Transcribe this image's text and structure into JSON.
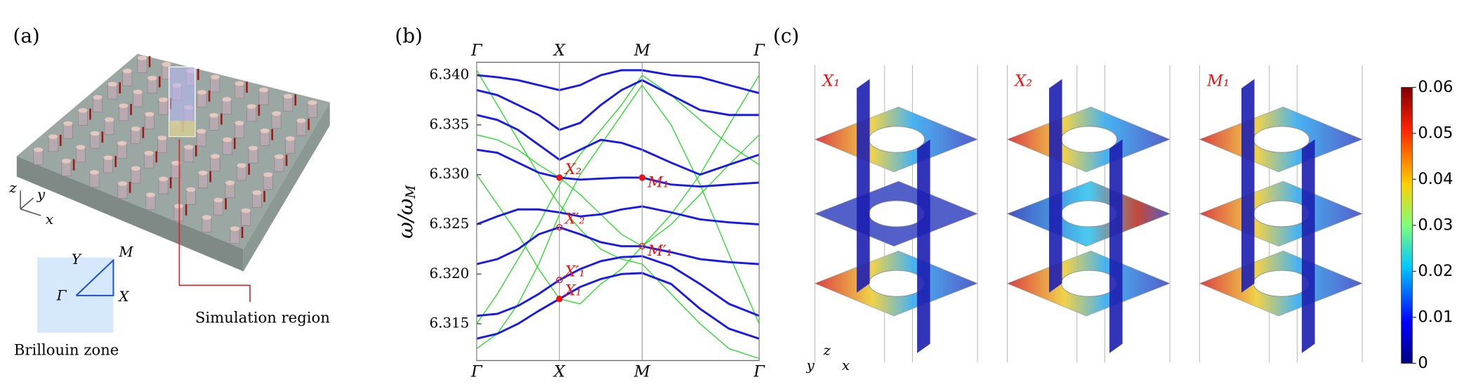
{
  "panel_labels": [
    "(a)",
    "(b)",
    "(c)"
  ],
  "panel_a": {
    "axes": [
      "z",
      "y",
      "x"
    ],
    "bz_points": [
      "Y",
      "M",
      "Γ",
      "X"
    ],
    "bz_caption": "Brillouin zone",
    "sim_caption": "Simulation region"
  },
  "chart_data": {
    "type": "line",
    "y_label": "ω/ω",
    "y_label_sub": "M",
    "x": [
      0,
      0.25,
      0.5,
      0.75,
      1,
      1.25,
      1.5,
      1.75,
      2,
      2.35,
      2.7,
      3.05,
      3.414
    ],
    "xlim": [
      0,
      3.414
    ],
    "xticks": [
      {
        "value": 0,
        "label": "Γ"
      },
      {
        "value": 1,
        "label": "X"
      },
      {
        "value": 2,
        "label": "M"
      },
      {
        "value": 3.414,
        "label": "Γ"
      }
    ],
    "ylim": [
      6.3113,
      6.3413
    ],
    "yticks": [
      {
        "value": 6.315,
        "label": "6.315"
      },
      {
        "value": 6.32,
        "label": "6.320"
      },
      {
        "value": 6.325,
        "label": "6.325"
      },
      {
        "value": 6.33,
        "label": "6.330"
      },
      {
        "value": 6.335,
        "label": "6.335"
      },
      {
        "value": 6.34,
        "label": "6.340"
      }
    ],
    "series": [
      {
        "color": "#22dd22",
        "values": [
          6.3125,
          6.314,
          6.317,
          6.321,
          6.326,
          6.33,
          6.333,
          6.336,
          6.339,
          6.335,
          6.329,
          6.322,
          6.315
        ]
      },
      {
        "color": "#22dd22",
        "values": [
          6.33,
          6.327,
          6.324,
          6.3205,
          6.3175,
          6.317,
          6.319,
          6.3205,
          6.3228,
          6.326,
          6.33,
          6.335,
          6.34
        ]
      },
      {
        "color": "#22dd22",
        "values": [
          6.3405,
          6.337,
          6.3335,
          6.33,
          6.327,
          6.3245,
          6.3225,
          6.3215,
          6.321,
          6.318,
          6.315,
          6.3125,
          6.3115
        ]
      },
      {
        "color": "#22dd22",
        "values": [
          6.315,
          6.318,
          6.3215,
          6.325,
          6.329,
          6.332,
          6.3345,
          6.337,
          6.34,
          6.338,
          6.3355,
          6.333,
          6.331
        ]
      },
      {
        "color": "#22dd22",
        "values": [
          6.334,
          6.3335,
          6.3325,
          6.331,
          6.3297,
          6.328,
          6.326,
          6.324,
          6.3228,
          6.325,
          6.328,
          6.331,
          6.334
        ]
      },
      {
        "color": "#1a1ae6",
        "values": [
          6.3135,
          6.314,
          6.315,
          6.3163,
          6.3175,
          6.3187,
          6.3195,
          6.32,
          6.3201,
          6.319,
          6.3165,
          6.3145,
          6.3135
        ]
      },
      {
        "color": "#1a1ae6",
        "values": [
          6.3158,
          6.316,
          6.3168,
          6.318,
          6.3194,
          6.3205,
          6.3213,
          6.3217,
          6.3218,
          6.3208,
          6.319,
          6.317,
          6.3158
        ]
      },
      {
        "color": "#1a1ae6",
        "values": [
          6.321,
          6.3215,
          6.3225,
          6.324,
          6.3247,
          6.324,
          6.3232,
          6.3228,
          6.3228,
          6.3222,
          6.3215,
          6.3212,
          6.321
        ]
      },
      {
        "color": "#1a1ae6",
        "values": [
          6.325,
          6.3258,
          6.3265,
          6.3265,
          6.3262,
          6.3258,
          6.326,
          6.3265,
          6.3268,
          6.3262,
          6.3255,
          6.3252,
          6.325
        ]
      },
      {
        "color": "#1a1ae6",
        "values": [
          6.3325,
          6.3322,
          6.3312,
          6.3302,
          6.3297,
          6.3295,
          6.3296,
          6.3297,
          6.3297,
          6.329,
          6.3288,
          6.329,
          6.3292
        ]
      },
      {
        "color": "#1a1ae6",
        "values": [
          6.336,
          6.3355,
          6.3345,
          6.333,
          6.3315,
          6.3325,
          6.3335,
          6.3332,
          6.3325,
          6.3312,
          6.33,
          6.331,
          6.332
        ]
      },
      {
        "color": "#1a1ae6",
        "values": [
          6.3385,
          6.338,
          6.337,
          6.336,
          6.3345,
          6.3352,
          6.337,
          6.3385,
          6.3395,
          6.338,
          6.3365,
          6.336,
          6.336
        ]
      },
      {
        "color": "#1a1ae6",
        "values": [
          6.34,
          6.3398,
          6.3395,
          6.339,
          6.3385,
          6.339,
          6.34,
          6.3405,
          6.3405,
          6.34,
          6.3398,
          6.339,
          6.3382
        ]
      }
    ],
    "points": [
      {
        "label": "X₂",
        "x": 1,
        "y": 6.3297,
        "filled": true
      },
      {
        "label": "X′₂",
        "x": 1,
        "y": 6.3247,
        "filled": false
      },
      {
        "label": "X′₁",
        "x": 1,
        "y": 6.3194,
        "filled": false
      },
      {
        "label": "X₁",
        "x": 1,
        "y": 6.3175,
        "filled": true
      },
      {
        "label": "M₁",
        "x": 2,
        "y": 6.3297,
        "filled": true
      },
      {
        "label": "M′₁",
        "x": 2,
        "y": 6.3228,
        "filled": false
      }
    ],
    "point_color": "#ee1111"
  },
  "panel_c": {
    "fields": [
      "X₁",
      "X₂",
      "M₁"
    ],
    "axes": [
      "y",
      "z",
      "x"
    ],
    "colorbar": {
      "lim": [
        0,
        0.06
      ],
      "ticks": [
        0,
        0.01,
        0.02,
        0.03,
        0.04,
        0.05,
        0.06
      ]
    }
  }
}
